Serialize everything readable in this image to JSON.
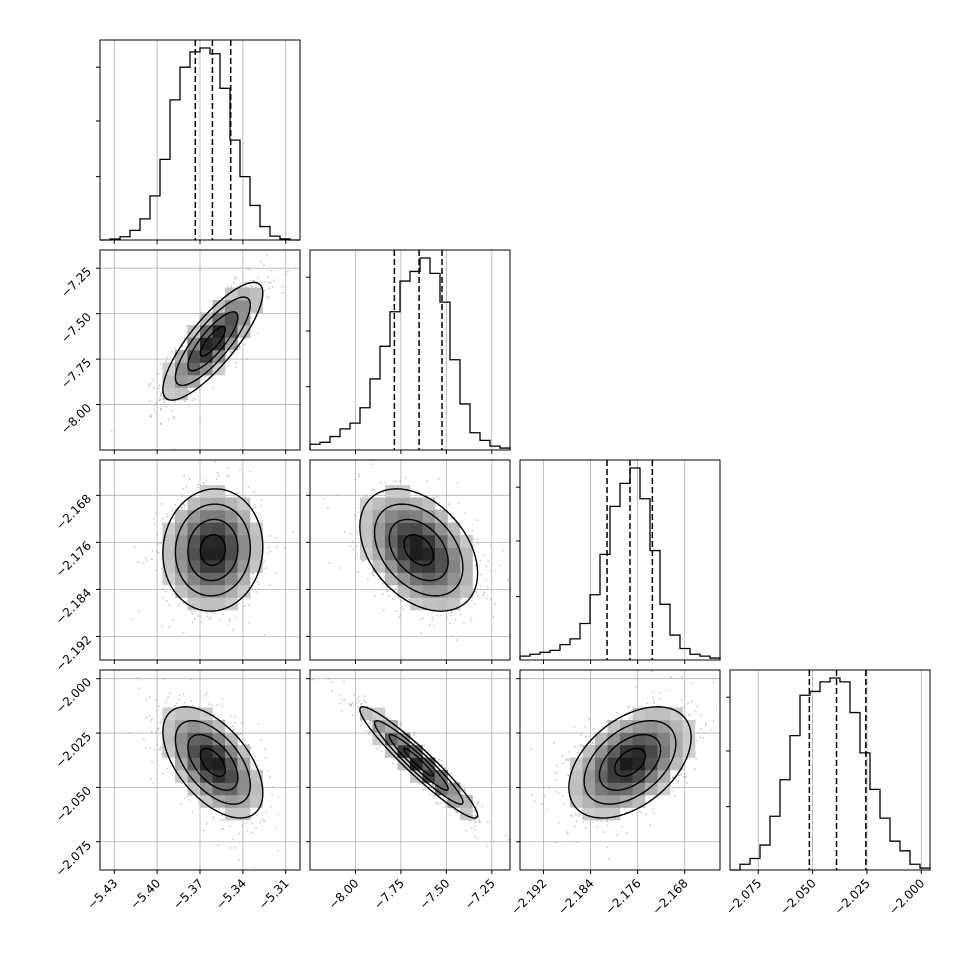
{
  "chart_data": {
    "type": "corner",
    "grid": true,
    "parameters": [
      {
        "index": 0,
        "range": [
          -5.44,
          -5.3
        ],
        "ticks": [
          -5.43,
          -5.4,
          -5.37,
          -5.34,
          -5.31
        ],
        "tick_labels": [
          "−5.43",
          "−5.40",
          "−5.37",
          "−5.34",
          "−5.31"
        ],
        "quantiles": [
          -5.3733,
          -5.3613,
          -5.3485
        ],
        "hist_bins": [
          -5.44,
          -5.433,
          -5.426,
          -5.419,
          -5.412,
          -5.405,
          -5.398,
          -5.391,
          -5.384,
          -5.377,
          -5.37,
          -5.363,
          -5.356,
          -5.349,
          -5.342,
          -5.335,
          -5.328,
          -5.321,
          -5.314,
          -5.307,
          -5.3
        ],
        "hist_heights": [
          0.0,
          0.005,
          0.017,
          0.05,
          0.11,
          0.23,
          0.42,
          0.73,
          0.9,
          0.98,
          1.0,
          0.97,
          0.79,
          0.52,
          0.33,
          0.18,
          0.07,
          0.02,
          0.006,
          0.0
        ]
      },
      {
        "index": 1,
        "range": [
          -8.25,
          -7.15
        ],
        "ticks": [
          -8.0,
          -7.75,
          -7.5,
          -7.25
        ],
        "tick_labels": [
          "−8.00",
          "−7.75",
          "−7.50",
          "−7.25"
        ],
        "quantiles": [
          -7.786,
          -7.65,
          -7.524
        ],
        "hist_bins": [
          -8.25,
          -8.195,
          -8.14,
          -8.085,
          -8.03,
          -7.975,
          -7.92,
          -7.865,
          -7.81,
          -7.755,
          -7.7,
          -7.645,
          -7.59,
          -7.535,
          -7.48,
          -7.425,
          -7.37,
          -7.315,
          -7.26,
          -7.205,
          -7.15
        ],
        "hist_heights": [
          0.03,
          0.04,
          0.07,
          0.11,
          0.14,
          0.22,
          0.37,
          0.54,
          0.72,
          0.88,
          0.93,
          1.0,
          0.92,
          0.77,
          0.47,
          0.24,
          0.09,
          0.05,
          0.02,
          0.01
        ]
      },
      {
        "index": 2,
        "range": [
          -2.196,
          -2.162
        ],
        "ticks": [
          -2.192,
          -2.184,
          -2.176,
          -2.168
        ],
        "tick_labels": [
          "−2.192",
          "−2.184",
          "−2.176",
          "−2.168"
        ],
        "quantiles": [
          -2.1812,
          -2.1773,
          -2.1735
        ],
        "hist_bins": [
          -2.196,
          -2.1943,
          -2.1926,
          -2.1909,
          -2.1892,
          -2.1875,
          -2.1858,
          -2.1841,
          -2.1824,
          -2.1807,
          -2.179,
          -2.1773,
          -2.1756,
          -2.1739,
          -2.1722,
          -2.1705,
          -2.1688,
          -2.1671,
          -2.1654,
          -2.1637,
          -2.162
        ],
        "hist_heights": [
          0.02,
          0.03,
          0.04,
          0.05,
          0.08,
          0.11,
          0.19,
          0.34,
          0.55,
          0.8,
          0.92,
          1.0,
          0.84,
          0.57,
          0.29,
          0.13,
          0.06,
          0.03,
          0.02,
          0.01
        ]
      },
      {
        "index": 3,
        "range": [
          -2.088,
          -1.996
        ],
        "ticks": [
          -2.075,
          -2.05,
          -2.025,
          -2.0
        ],
        "tick_labels": [
          "−2.075",
          "−2.050",
          "−2.025",
          "−2.000"
        ],
        "quantiles": [
          -2.0515,
          -2.039,
          -2.0255
        ],
        "hist_bins": [
          -2.088,
          -2.0834,
          -2.0788,
          -2.0742,
          -2.0696,
          -2.065,
          -2.0604,
          -2.0558,
          -2.0512,
          -2.0466,
          -2.042,
          -2.0374,
          -2.0328,
          -2.0282,
          -2.0236,
          -2.019,
          -2.0144,
          -2.0098,
          -2.0052,
          -2.0006,
          -1.996
        ],
        "hist_heights": [
          0.0,
          0.03,
          0.06,
          0.13,
          0.28,
          0.47,
          0.7,
          0.91,
          0.93,
          0.98,
          1.0,
          0.98,
          0.82,
          0.61,
          0.42,
          0.27,
          0.15,
          0.1,
          0.03,
          0.01
        ]
      }
    ],
    "pairs": [
      {
        "x": 0,
        "y": 1,
        "center": [
          -5.361,
          -7.652
        ],
        "sd": [
          0.0175,
          0.162
        ],
        "rho": 0.82
      },
      {
        "x": 0,
        "y": 2,
        "center": [
          -5.361,
          -2.1773
        ],
        "sd": [
          0.0175,
          0.0052
        ],
        "rho": 0.05
      },
      {
        "x": 1,
        "y": 2,
        "center": [
          -7.652,
          -2.1773
        ],
        "sd": [
          0.162,
          0.0052
        ],
        "rho": -0.38
      },
      {
        "x": 0,
        "y": 3,
        "center": [
          -5.361,
          -2.0385
        ],
        "sd": [
          0.0175,
          0.0128
        ],
        "rho": -0.55
      },
      {
        "x": 1,
        "y": 3,
        "center": [
          -7.652,
          -2.0385
        ],
        "sd": [
          0.162,
          0.0128
        ],
        "rho": -0.95
      },
      {
        "x": 2,
        "y": 3,
        "center": [
          -2.1773,
          -2.0385
        ],
        "sd": [
          0.0052,
          0.0128
        ],
        "rho": 0.45
      }
    ],
    "contour_levels_sigma": [
      0.5,
      1.0,
      1.5,
      2.0
    ],
    "colors": {
      "line": "#000000",
      "grid": "#b0b0b0",
      "points": "#888888"
    }
  }
}
